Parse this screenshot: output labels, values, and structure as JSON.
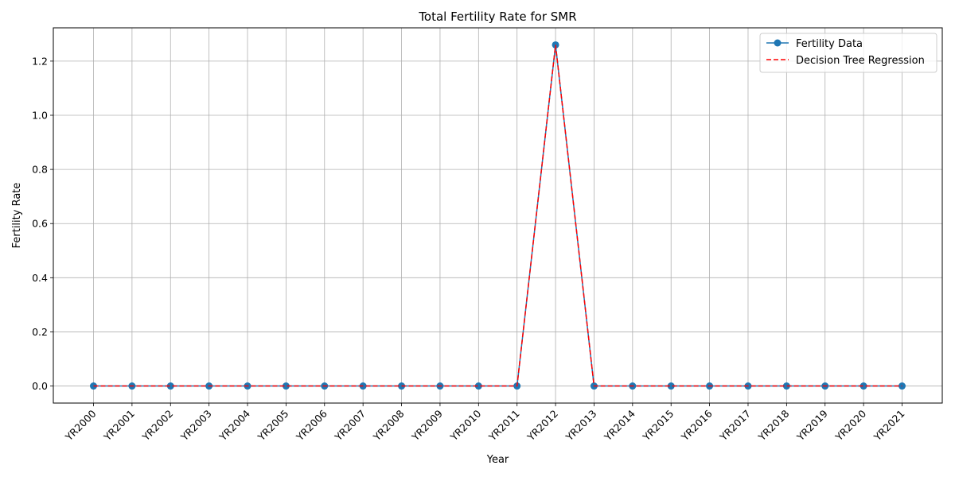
{
  "chart_data": {
    "type": "line",
    "title": "Total Fertility Rate for SMR",
    "xlabel": "Year",
    "ylabel": "Fertility Rate",
    "categories": [
      "YR2000",
      "YR2001",
      "YR2002",
      "YR2003",
      "YR2004",
      "YR2005",
      "YR2006",
      "YR2007",
      "YR2008",
      "YR2009",
      "YR2010",
      "YR2011",
      "YR2012",
      "YR2013",
      "YR2014",
      "YR2015",
      "YR2016",
      "YR2017",
      "YR2018",
      "YR2019",
      "YR2020",
      "YR2021"
    ],
    "series": [
      {
        "name": "Fertility Data",
        "color": "#1f77b4",
        "style": "solid-with-circle-markers",
        "values": [
          0,
          0,
          0,
          0,
          0,
          0,
          0,
          0,
          0,
          0,
          0,
          0,
          1.26,
          0,
          0,
          0,
          0,
          0,
          0,
          0,
          0,
          0
        ]
      },
      {
        "name": "Decision Tree Regression",
        "color": "#ff0000",
        "style": "dashed",
        "values": [
          0,
          0,
          0,
          0,
          0,
          0,
          0,
          0,
          0,
          0,
          0,
          0,
          1.26,
          0,
          0,
          0,
          0,
          0,
          0,
          0,
          0,
          0
        ]
      }
    ],
    "ylim": [
      -0.063,
      1.323
    ],
    "yticks": [
      "0.0",
      "0.2",
      "0.4",
      "0.6",
      "0.8",
      "1.0",
      "1.2"
    ],
    "ytick_values": [
      0,
      0.2,
      0.4,
      0.6,
      0.8,
      1.0,
      1.2
    ],
    "grid": true,
    "legend_position": "top-right",
    "xtick_rotation": 45
  }
}
